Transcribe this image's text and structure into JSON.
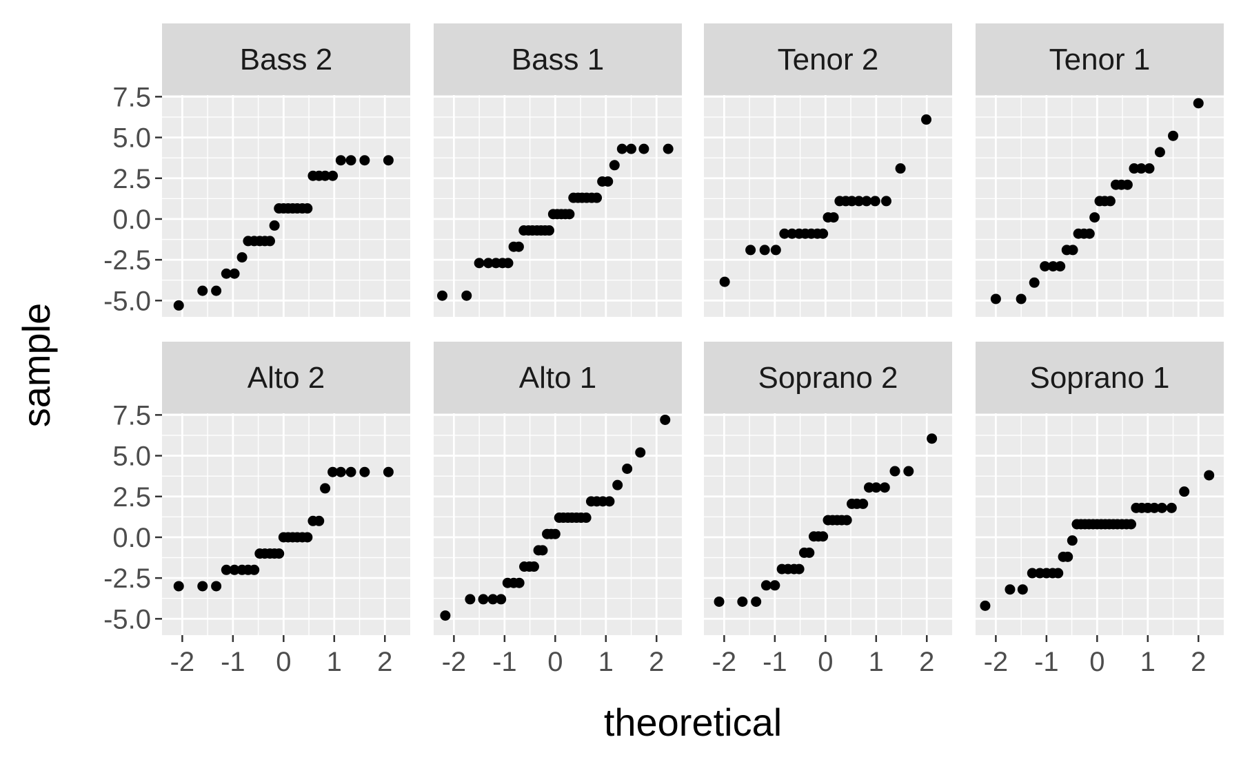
{
  "chart_data": {
    "type": "scatter",
    "xlabel": "theoretical",
    "ylabel": "sample",
    "x_ticks": [
      -2,
      -1,
      0,
      1,
      2
    ],
    "x_tick_labels": [
      "-2",
      "-1",
      "0",
      "1",
      "2"
    ],
    "xlim": [
      -2.4,
      2.5
    ],
    "y_ticks": [
      -5.0,
      -2.5,
      0.0,
      2.5,
      5.0,
      7.5
    ],
    "y_tick_labels": [
      "-5.0",
      "-2.5",
      "0.0",
      "2.5",
      "5.0",
      "7.5"
    ],
    "ylim": [
      -6.0,
      7.6
    ],
    "grid": true,
    "point_color": "#000000",
    "panel_background": "#ebebeb",
    "strip_background": "#d9d9d9",
    "panels": [
      {
        "title": "Bass 2",
        "points": [
          [
            -2.07,
            -5.3
          ],
          [
            -1.6,
            -4.4
          ],
          [
            -1.33,
            -4.4
          ],
          [
            -1.13,
            -3.35
          ],
          [
            -0.97,
            -3.35
          ],
          [
            -0.82,
            -2.35
          ],
          [
            -0.7,
            -1.35
          ],
          [
            -0.58,
            -1.35
          ],
          [
            -0.47,
            -1.35
          ],
          [
            -0.37,
            -1.35
          ],
          [
            -0.27,
            -1.35
          ],
          [
            -0.18,
            -0.4
          ],
          [
            -0.09,
            0.65
          ],
          [
            0.0,
            0.65
          ],
          [
            0.09,
            0.65
          ],
          [
            0.18,
            0.65
          ],
          [
            0.27,
            0.65
          ],
          [
            0.37,
            0.65
          ],
          [
            0.47,
            0.65
          ],
          [
            0.58,
            2.65
          ],
          [
            0.7,
            2.65
          ],
          [
            0.82,
            2.65
          ],
          [
            0.97,
            2.65
          ],
          [
            1.13,
            3.6
          ],
          [
            1.33,
            3.6
          ],
          [
            1.6,
            3.6
          ],
          [
            2.07,
            3.6
          ]
        ]
      },
      {
        "title": "Bass 1",
        "points": [
          [
            -2.23,
            -4.7
          ],
          [
            -1.75,
            -4.7
          ],
          [
            -1.5,
            -2.7
          ],
          [
            -1.32,
            -2.7
          ],
          [
            -1.17,
            -2.7
          ],
          [
            -1.04,
            -2.7
          ],
          [
            -0.93,
            -2.7
          ],
          [
            -0.82,
            -1.7
          ],
          [
            -0.72,
            -1.7
          ],
          [
            -0.62,
            -0.7
          ],
          [
            -0.53,
            -0.7
          ],
          [
            -0.45,
            -0.7
          ],
          [
            -0.36,
            -0.7
          ],
          [
            -0.28,
            -0.7
          ],
          [
            -0.2,
            -0.7
          ],
          [
            -0.12,
            -0.7
          ],
          [
            -0.04,
            0.3
          ],
          [
            0.04,
            0.3
          ],
          [
            0.12,
            0.3
          ],
          [
            0.2,
            0.3
          ],
          [
            0.28,
            0.3
          ],
          [
            0.36,
            1.3
          ],
          [
            0.45,
            1.3
          ],
          [
            0.53,
            1.3
          ],
          [
            0.62,
            1.3
          ],
          [
            0.72,
            1.3
          ],
          [
            0.82,
            1.3
          ],
          [
            0.93,
            2.3
          ],
          [
            1.04,
            2.3
          ],
          [
            1.17,
            3.3
          ],
          [
            1.32,
            4.3
          ],
          [
            1.5,
            4.3
          ],
          [
            1.75,
            4.3
          ],
          [
            2.23,
            4.3
          ]
        ]
      },
      {
        "title": "Tenor 2",
        "points": [
          [
            -1.99,
            -3.85
          ],
          [
            -1.48,
            -1.9
          ],
          [
            -1.2,
            -1.9
          ],
          [
            -0.98,
            -1.9
          ],
          [
            -0.81,
            -0.9
          ],
          [
            -0.66,
            -0.9
          ],
          [
            -0.52,
            -0.9
          ],
          [
            -0.4,
            -0.9
          ],
          [
            -0.28,
            -0.9
          ],
          [
            -0.16,
            -0.9
          ],
          [
            -0.05,
            -0.9
          ],
          [
            0.05,
            0.1
          ],
          [
            0.16,
            0.1
          ],
          [
            0.28,
            1.1
          ],
          [
            0.4,
            1.1
          ],
          [
            0.52,
            1.1
          ],
          [
            0.66,
            1.1
          ],
          [
            0.81,
            1.1
          ],
          [
            0.98,
            1.1
          ],
          [
            1.2,
            1.1
          ],
          [
            1.48,
            3.1
          ],
          [
            1.99,
            6.1
          ]
        ]
      },
      {
        "title": "Tenor 1",
        "points": [
          [
            -2.0,
            -4.9
          ],
          [
            -1.5,
            -4.9
          ],
          [
            -1.24,
            -3.9
          ],
          [
            -1.03,
            -2.9
          ],
          [
            -0.87,
            -2.9
          ],
          [
            -0.73,
            -2.9
          ],
          [
            -0.6,
            -1.9
          ],
          [
            -0.48,
            -1.9
          ],
          [
            -0.37,
            -0.9
          ],
          [
            -0.26,
            -0.9
          ],
          [
            -0.15,
            -0.9
          ],
          [
            -0.05,
            0.1
          ],
          [
            0.05,
            1.1
          ],
          [
            0.15,
            1.1
          ],
          [
            0.26,
            1.1
          ],
          [
            0.37,
            2.1
          ],
          [
            0.48,
            2.1
          ],
          [
            0.6,
            2.1
          ],
          [
            0.73,
            3.1
          ],
          [
            0.87,
            3.1
          ],
          [
            1.03,
            3.1
          ],
          [
            1.24,
            4.1
          ],
          [
            1.5,
            5.1
          ],
          [
            2.0,
            7.1
          ]
        ]
      },
      {
        "title": "Alto 2",
        "points": [
          [
            -2.07,
            -3.0
          ],
          [
            -1.6,
            -3.0
          ],
          [
            -1.33,
            -3.0
          ],
          [
            -1.13,
            -2.0
          ],
          [
            -0.97,
            -2.0
          ],
          [
            -0.82,
            -2.0
          ],
          [
            -0.7,
            -2.0
          ],
          [
            -0.58,
            -2.0
          ],
          [
            -0.47,
            -1.0
          ],
          [
            -0.37,
            -1.0
          ],
          [
            -0.27,
            -1.0
          ],
          [
            -0.18,
            -1.0
          ],
          [
            -0.09,
            -1.0
          ],
          [
            0.0,
            0.0
          ],
          [
            0.09,
            0.0
          ],
          [
            0.18,
            0.0
          ],
          [
            0.27,
            0.0
          ],
          [
            0.37,
            0.0
          ],
          [
            0.47,
            0.0
          ],
          [
            0.58,
            1.0
          ],
          [
            0.7,
            1.0
          ],
          [
            0.82,
            3.0
          ],
          [
            0.97,
            4.0
          ],
          [
            1.13,
            4.0
          ],
          [
            1.33,
            4.0
          ],
          [
            1.6,
            4.0
          ],
          [
            2.07,
            4.0
          ]
        ]
      },
      {
        "title": "Alto 1",
        "points": [
          [
            -2.17,
            -4.8
          ],
          [
            -1.68,
            -3.8
          ],
          [
            -1.42,
            -3.8
          ],
          [
            -1.23,
            -3.8
          ],
          [
            -1.07,
            -3.8
          ],
          [
            -0.94,
            -2.8
          ],
          [
            -0.82,
            -2.8
          ],
          [
            -0.71,
            -2.8
          ],
          [
            -0.61,
            -1.8
          ],
          [
            -0.51,
            -1.8
          ],
          [
            -0.42,
            -1.8
          ],
          [
            -0.33,
            -0.8
          ],
          [
            -0.25,
            -0.8
          ],
          [
            -0.16,
            0.2
          ],
          [
            -0.08,
            0.2
          ],
          [
            0.0,
            0.2
          ],
          [
            0.08,
            1.2
          ],
          [
            0.16,
            1.2
          ],
          [
            0.25,
            1.2
          ],
          [
            0.33,
            1.2
          ],
          [
            0.42,
            1.2
          ],
          [
            0.51,
            1.2
          ],
          [
            0.61,
            1.2
          ],
          [
            0.71,
            2.2
          ],
          [
            0.82,
            2.2
          ],
          [
            0.94,
            2.2
          ],
          [
            1.07,
            2.2
          ],
          [
            1.23,
            3.2
          ],
          [
            1.42,
            4.2
          ],
          [
            1.68,
            5.2
          ],
          [
            2.17,
            7.2
          ]
        ]
      },
      {
        "title": "Soprano 2",
        "points": [
          [
            -2.1,
            -3.95
          ],
          [
            -1.64,
            -3.95
          ],
          [
            -1.37,
            -3.95
          ],
          [
            -1.17,
            -2.95
          ],
          [
            -1.0,
            -2.95
          ],
          [
            -0.86,
            -1.95
          ],
          [
            -0.74,
            -1.95
          ],
          [
            -0.62,
            -1.95
          ],
          [
            -0.52,
            -1.95
          ],
          [
            -0.42,
            -0.95
          ],
          [
            -0.32,
            -0.95
          ],
          [
            -0.23,
            0.05
          ],
          [
            -0.14,
            0.05
          ],
          [
            -0.05,
            0.05
          ],
          [
            0.05,
            1.05
          ],
          [
            0.14,
            1.05
          ],
          [
            0.23,
            1.05
          ],
          [
            0.32,
            1.05
          ],
          [
            0.42,
            1.05
          ],
          [
            0.52,
            2.05
          ],
          [
            0.62,
            2.05
          ],
          [
            0.74,
            2.05
          ],
          [
            0.86,
            3.05
          ],
          [
            1.0,
            3.05
          ],
          [
            1.17,
            3.05
          ],
          [
            1.37,
            4.05
          ],
          [
            1.64,
            4.05
          ],
          [
            2.1,
            6.05
          ]
        ]
      },
      {
        "title": "Soprano 1",
        "points": [
          [
            -2.21,
            -4.2
          ],
          [
            -1.72,
            -3.2
          ],
          [
            -1.47,
            -3.2
          ],
          [
            -1.28,
            -2.2
          ],
          [
            -1.13,
            -2.2
          ],
          [
            -1.0,
            -2.2
          ],
          [
            -0.88,
            -2.2
          ],
          [
            -0.77,
            -2.2
          ],
          [
            -0.67,
            -1.2
          ],
          [
            -0.58,
            -1.2
          ],
          [
            -0.49,
            -0.2
          ],
          [
            -0.4,
            0.8
          ],
          [
            -0.32,
            0.8
          ],
          [
            -0.24,
            0.8
          ],
          [
            -0.16,
            0.8
          ],
          [
            -0.08,
            0.8
          ],
          [
            0.0,
            0.8
          ],
          [
            0.08,
            0.8
          ],
          [
            0.16,
            0.8
          ],
          [
            0.24,
            0.8
          ],
          [
            0.32,
            0.8
          ],
          [
            0.4,
            0.8
          ],
          [
            0.49,
            0.8
          ],
          [
            0.58,
            0.8
          ],
          [
            0.67,
            0.8
          ],
          [
            0.77,
            1.8
          ],
          [
            0.88,
            1.8
          ],
          [
            1.0,
            1.8
          ],
          [
            1.13,
            1.8
          ],
          [
            1.28,
            1.8
          ],
          [
            1.47,
            1.8
          ],
          [
            1.72,
            2.8
          ],
          [
            2.21,
            3.8
          ]
        ]
      }
    ]
  }
}
